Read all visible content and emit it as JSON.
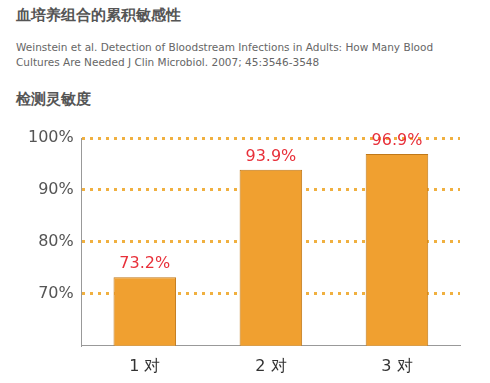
{
  "chart_data": {
    "type": "bar",
    "title": "血培养组合的累积敏感性",
    "subtitle": "Weinstein et al. Detection of Bloodstream Infections in Adults: How Many Blood Cultures Are Needed J Clin Microbiol. 2007; 45:3546-3548",
    "y_label": "检测灵敏度",
    "categories": [
      "1 对",
      "2 对",
      "3 对"
    ],
    "values": [
      73.2,
      93.9,
      96.9
    ],
    "value_labels": [
      "73.2%",
      "93.9%",
      "96.9%"
    ],
    "data_labels": true,
    "color": "#f0a030",
    "ylim": [
      60,
      100
    ],
    "yticks": [
      {
        "value": 70,
        "label": "70%"
      },
      {
        "value": 80,
        "label": "80%"
      },
      {
        "value": 90,
        "label": "90%"
      },
      {
        "value": 100,
        "label": "100%"
      }
    ],
    "grid": true
  }
}
